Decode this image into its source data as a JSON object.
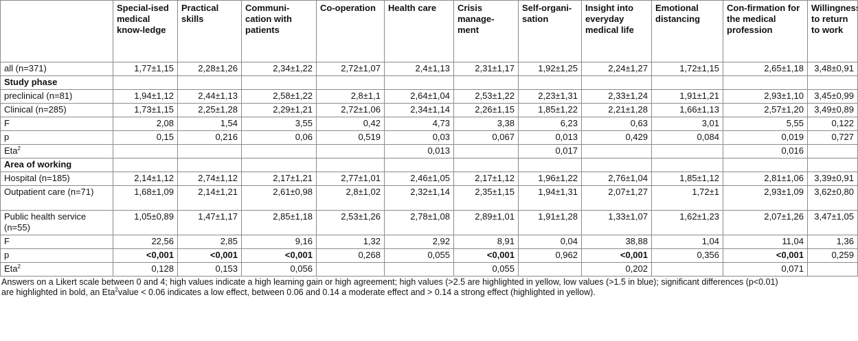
{
  "columns": [
    "",
    "Special-ised medical know-ledge",
    "Practical skills",
    "Communi-cation with patients",
    "Co-operation",
    "Health care",
    "Crisis manage-ment",
    "Self-organi-sation",
    "Insight into everyday medical life",
    "Emotional distancing",
    "Con-firmation for the medical profession",
    "Willingness to return to work"
  ],
  "rows": [
    {
      "type": "data",
      "label": "all (n=371)",
      "cells": [
        "1,77±1,15",
        "2,28±1,26",
        "2,34±1,22",
        "2,72±1,07",
        "2,4±1,13",
        "2,31±1,17",
        "1,92±1,25",
        "2,24±1,27",
        "1,72±1,15",
        "2,65±1,18",
        "3,48±0,91"
      ]
    },
    {
      "type": "section",
      "label": "Study phase"
    },
    {
      "type": "data",
      "label": "preclinical (n=81)",
      "cells": [
        "1,94±1,12",
        "2,44±1,13",
        "2,58±1,22",
        "2,8±1,1",
        "2,64±1,04",
        "2,53±1,22",
        "2,23±1,31",
        "2,33±1,24",
        "1,91±1,21",
        "2,93±1,10",
        "3,45±0,99"
      ]
    },
    {
      "type": "data",
      "label": "Clinical (n=285)",
      "cells": [
        "1,73±1,15",
        "2,25±1,28",
        "2,29±1,21",
        "2,72±1,06",
        "2,34±1,14",
        "2,26±1,15",
        "1,85±1,22",
        "2,21±1,28",
        "1,66±1,13",
        "2,57±1,20",
        "3,49±0,89"
      ]
    },
    {
      "type": "data",
      "label": "F",
      "cells": [
        "2,08",
        "1,54",
        "3,55",
        "0,42",
        "4,73",
        "3,38",
        "6,23",
        "0,63",
        "3,01",
        "5,55",
        "0,122"
      ]
    },
    {
      "type": "data",
      "label": "p",
      "cells": [
        "0,15",
        "0,216",
        "0,06",
        "0,519",
        "0,03",
        "0,067",
        "0,013",
        "0,429",
        "0,084",
        "0,019",
        "0,727"
      ]
    },
    {
      "type": "eta",
      "label": "Eta",
      "sup": "2",
      "cells": [
        "",
        "",
        "",
        "",
        "0,013",
        "",
        "0,017",
        "",
        "",
        "0,016",
        ""
      ]
    },
    {
      "type": "section",
      "label": "Area of working"
    },
    {
      "type": "data",
      "label": "Hospital (n=185)",
      "cells": [
        "2,14±1,12",
        "2,74±1,12",
        "2,17±1,21",
        "2,77±1,01",
        "2,46±1,05",
        "2,17±1,12",
        "1,96±1,22",
        "2,76±1,04",
        "1,85±1,12",
        "2,81±1,06",
        "3,39±0,91"
      ]
    },
    {
      "type": "data",
      "tall": true,
      "label": "Outpatient care (n=71)",
      "cells": [
        "1,68±1,09",
        "2,14±1,21",
        "2,61±0,98",
        "2,8±1,02",
        "2,32±1,14",
        "2,35±1,15",
        "1,94±1,31",
        "2,07±1,27",
        "1,72±1",
        "2,93±1,09",
        "3,62±0,80"
      ]
    },
    {
      "type": "data",
      "tall": true,
      "label": "Public health service (n=55)",
      "cells": [
        "1,05±0,89",
        "1,47±1,17",
        "2,85±1,18",
        "2,53±1,26",
        "2,78±1,08",
        "2,89±1,01",
        "1,91±1,28",
        "1,33±1,07",
        "1,62±1,23",
        "2,07±1,26",
        "3,47±1,05"
      ]
    },
    {
      "type": "data",
      "label": "F",
      "cells": [
        "22,56",
        "2,85",
        "9,16",
        "1,32",
        "2,92",
        "8,91",
        "0,04",
        "38,88",
        "1,04",
        "11,04",
        "1,36"
      ]
    },
    {
      "type": "data",
      "label": "p",
      "bold_cols": [
        0,
        1,
        2,
        5,
        7,
        9
      ],
      "cells": [
        "<0,001",
        "<0,001",
        "<0,001",
        "0,268",
        "0,055",
        "<0,001",
        "0,962",
        "<0,001",
        "0,356",
        "<0,001",
        "0,259"
      ]
    },
    {
      "type": "eta",
      "label": "Eta",
      "sup": "2",
      "cells": [
        "0,128",
        "0,153",
        "0,056",
        "",
        "",
        "0,055",
        "",
        "0,202",
        "",
        "0,071",
        ""
      ]
    }
  ],
  "footnote": {
    "part1": "Answers on a Likert scale between 0 and 4; high values indicate a high learning gain or high agreement; high values (>2.5 are highlighted in yellow, low values (>1.5 in blue); significant differences (p<0.01) are highlighted in bold, an Eta",
    "sup": "2",
    "part2": "value < 0.06 indicates a low effect, between 0.06 and 0.14 a moderate effect and > 0.14 a strong effect (highlighted in yellow)."
  }
}
